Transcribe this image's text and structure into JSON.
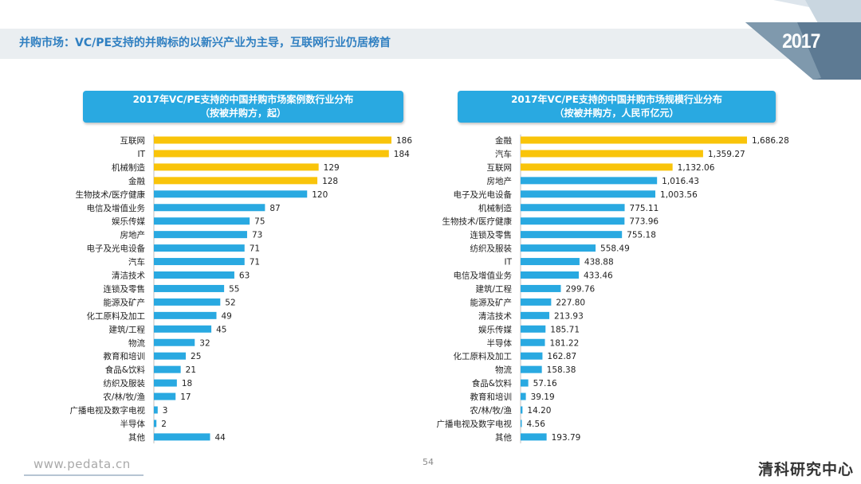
{
  "page": {
    "title": "并购市场：VC/PE支持的并购标的以新兴产业为主导，互联网行业仍居榜首",
    "year_badge": "2017",
    "footer_url": "www.pedata.cn",
    "page_number": "54",
    "brand": "清科研究中心"
  },
  "colors": {
    "highlight_bar": "#f9c40a",
    "normal_bar": "#29a9e1",
    "title_text": "#2f7fc1",
    "panel_title_bg": "#29a9e1"
  },
  "chart_data": [
    {
      "type": "bar",
      "orientation": "horizontal",
      "title_line1": "2017年VC/PE支持的中国并购市场案例数行业分布",
      "title_line2": "（按被并购方，起）",
      "categories": [
        "互联网",
        "IT",
        "机械制造",
        "金融",
        "生物技术/医疗健康",
        "电信及增值业务",
        "娱乐传媒",
        "房地产",
        "电子及光电设备",
        "汽车",
        "清洁技术",
        "连锁及零售",
        "能源及矿产",
        "化工原料及加工",
        "建筑/工程",
        "物流",
        "教育和培训",
        "食品&饮料",
        "纺织及服装",
        "农/林/牧/渔",
        "广播电视及数字电视",
        "半导体",
        "其他"
      ],
      "values": [
        186,
        184,
        129,
        128,
        120,
        87,
        75,
        73,
        71,
        71,
        63,
        55,
        52,
        49,
        45,
        32,
        25,
        21,
        18,
        17,
        3,
        2,
        44
      ],
      "labels": [
        "186",
        "184",
        "129",
        "128",
        "120",
        "87",
        "75",
        "73",
        "71",
        "71",
        "63",
        "55",
        "52",
        "49",
        "45",
        "32",
        "25",
        "21",
        "18",
        "17",
        "3",
        "2",
        "44"
      ],
      "highlight_top": 4,
      "xlim": [
        0,
        186
      ]
    },
    {
      "type": "bar",
      "orientation": "horizontal",
      "title_line1": "2017年VC/PE支持的中国并购市场规模行业分布",
      "title_line2": "（按被并购方，人民币亿元）",
      "categories": [
        "金融",
        "汽车",
        "互联网",
        "房地产",
        "电子及光电设备",
        "机械制造",
        "生物技术/医疗健康",
        "连锁及零售",
        "纺织及服装",
        "IT",
        "电信及增值业务",
        "建筑/工程",
        "能源及矿产",
        "清洁技术",
        "娱乐传媒",
        "半导体",
        "化工原料及加工",
        "物流",
        "食品&饮料",
        "教育和培训",
        "农/林/牧/渔",
        "广播电视及数字电视",
        "其他"
      ],
      "values": [
        1686.28,
        1359.27,
        1132.06,
        1016.43,
        1003.56,
        775.11,
        773.96,
        755.18,
        558.49,
        438.88,
        433.46,
        299.76,
        227.8,
        213.93,
        185.71,
        181.22,
        162.87,
        158.38,
        57.16,
        39.19,
        14.2,
        4.56,
        193.79
      ],
      "labels": [
        "1,686.28",
        "1,359.27",
        "1,132.06",
        "1,016.43",
        "1,003.56",
        "775.11",
        "773.96",
        "755.18",
        "558.49",
        "438.88",
        "433.46",
        "299.76",
        "227.80",
        "213.93",
        "185.71",
        "181.22",
        "162.87",
        "158.38",
        "57.16",
        "39.19",
        "14.20",
        "4.56",
        "193.79"
      ],
      "highlight_top": 3,
      "xlim": [
        0,
        1686.28
      ]
    }
  ]
}
